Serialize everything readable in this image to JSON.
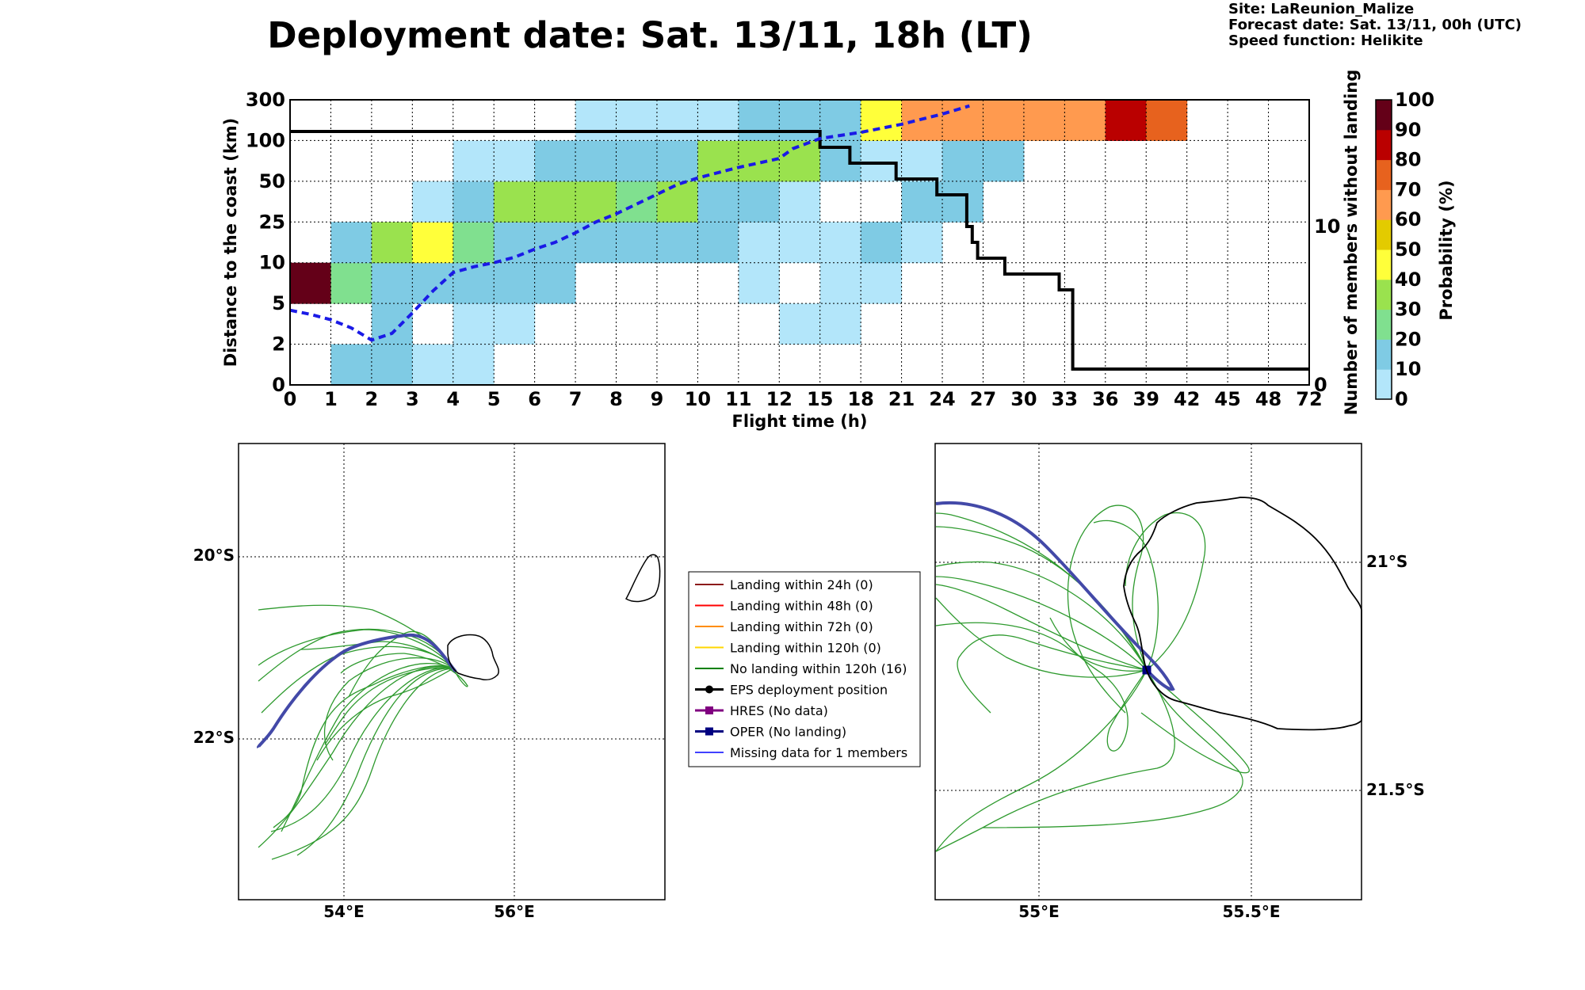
{
  "title": "Deployment date: Sat. 13/11, 18h (LT)",
  "site_info": {
    "site": "Site: LaReunion_Malize",
    "forecast": "Forecast date: Sat. 13/11, 00h (UTC)",
    "speed": "Speed function: Helikite"
  },
  "chart_data": [
    {
      "type": "heatmap",
      "xlabel": "Flight time (h)",
      "ylabel": "Distance to the coast (km)",
      "y2label": "Number of members without landing",
      "x_bins": [
        "0",
        "1",
        "2",
        "3",
        "4",
        "5",
        "6",
        "7",
        "8",
        "9",
        "10",
        "11",
        "12",
        "15",
        "18",
        "21",
        "24",
        "27",
        "30",
        "33",
        "36",
        "39",
        "42",
        "45",
        "48",
        "72"
      ],
      "y_bins": [
        "0",
        "2",
        "5",
        "10",
        "25",
        "50",
        "100",
        "300"
      ],
      "y2_ticks": [
        "0",
        "10"
      ],
      "y2_range": [
        0,
        18
      ],
      "colorbar": {
        "label": "Probability (%)",
        "ticks": [
          "0",
          "10",
          "20",
          "30",
          "40",
          "50",
          "60",
          "70",
          "80",
          "90",
          "100"
        ],
        "colors": [
          "#b3e6fa",
          "#7fcbe4",
          "#80e08f",
          "#9ae24e",
          "#ffff3a",
          "#e3cb00",
          "#ff9a4f",
          "#e7621e",
          "#ba0000",
          "#640018"
        ]
      },
      "cells": [
        {
          "x": 0,
          "y": 2,
          "v": 95
        },
        {
          "x": 1,
          "y": 0,
          "v": 10
        },
        {
          "x": 2,
          "y": 0,
          "v": 10
        },
        {
          "x": 3,
          "y": 0,
          "v": 5
        },
        {
          "x": 4,
          "y": 0,
          "v": 5
        },
        {
          "x": 2,
          "y": 1,
          "v": 10
        },
        {
          "x": 4,
          "y": 1,
          "v": 5
        },
        {
          "x": 5,
          "y": 1,
          "v": 5
        },
        {
          "x": 12,
          "y": 1,
          "v": 5
        },
        {
          "x": 13,
          "y": 1,
          "v": 5
        },
        {
          "x": 1,
          "y": 2,
          "v": 25
        },
        {
          "x": 2,
          "y": 2,
          "v": 15
        },
        {
          "x": 3,
          "y": 2,
          "v": 15
        },
        {
          "x": 4,
          "y": 2,
          "v": 10
        },
        {
          "x": 5,
          "y": 2,
          "v": 10
        },
        {
          "x": 6,
          "y": 2,
          "v": 10
        },
        {
          "x": 11,
          "y": 2,
          "v": 5
        },
        {
          "x": 13,
          "y": 2,
          "v": 5
        },
        {
          "x": 14,
          "y": 2,
          "v": 5
        },
        {
          "x": 1,
          "y": 3,
          "v": 15
        },
        {
          "x": 2,
          "y": 3,
          "v": 35
        },
        {
          "x": 3,
          "y": 3,
          "v": 45
        },
        {
          "x": 4,
          "y": 3,
          "v": 25
        },
        {
          "x": 5,
          "y": 3,
          "v": 15
        },
        {
          "x": 6,
          "y": 3,
          "v": 15
        },
        {
          "x": 7,
          "y": 3,
          "v": 15
        },
        {
          "x": 8,
          "y": 3,
          "v": 15
        },
        {
          "x": 9,
          "y": 3,
          "v": 10
        },
        {
          "x": 10,
          "y": 3,
          "v": 10
        },
        {
          "x": 11,
          "y": 3,
          "v": 5
        },
        {
          "x": 12,
          "y": 3,
          "v": 5
        },
        {
          "x": 13,
          "y": 3,
          "v": 5
        },
        {
          "x": 14,
          "y": 3,
          "v": 10
        },
        {
          "x": 15,
          "y": 3,
          "v": 5
        },
        {
          "x": 3,
          "y": 4,
          "v": 5
        },
        {
          "x": 4,
          "y": 4,
          "v": 15
        },
        {
          "x": 5,
          "y": 4,
          "v": 35
        },
        {
          "x": 6,
          "y": 4,
          "v": 35
        },
        {
          "x": 7,
          "y": 4,
          "v": 35
        },
        {
          "x": 8,
          "y": 4,
          "v": 25
        },
        {
          "x": 9,
          "y": 4,
          "v": 35
        },
        {
          "x": 10,
          "y": 4,
          "v": 10
        },
        {
          "x": 11,
          "y": 4,
          "v": 10
        },
        {
          "x": 12,
          "y": 4,
          "v": 5
        },
        {
          "x": 15,
          "y": 4,
          "v": 10
        },
        {
          "x": 16,
          "y": 4,
          "v": 10
        },
        {
          "x": 4,
          "y": 5,
          "v": 5
        },
        {
          "x": 5,
          "y": 5,
          "v": 5
        },
        {
          "x": 6,
          "y": 5,
          "v": 10
        },
        {
          "x": 7,
          "y": 5,
          "v": 10
        },
        {
          "x": 8,
          "y": 5,
          "v": 15
        },
        {
          "x": 9,
          "y": 5,
          "v": 15
        },
        {
          "x": 10,
          "y": 5,
          "v": 35
        },
        {
          "x": 11,
          "y": 5,
          "v": 35
        },
        {
          "x": 12,
          "y": 5,
          "v": 35
        },
        {
          "x": 13,
          "y": 5,
          "v": 10
        },
        {
          "x": 14,
          "y": 5,
          "v": 5
        },
        {
          "x": 15,
          "y": 5,
          "v": 5
        },
        {
          "x": 16,
          "y": 5,
          "v": 10
        },
        {
          "x": 17,
          "y": 5,
          "v": 15
        },
        {
          "x": 7,
          "y": 6,
          "v": 5
        },
        {
          "x": 8,
          "y": 6,
          "v": 5
        },
        {
          "x": 9,
          "y": 6,
          "v": 5
        },
        {
          "x": 10,
          "y": 6,
          "v": 5
        },
        {
          "x": 11,
          "y": 6,
          "v": 10
        },
        {
          "x": 12,
          "y": 6,
          "v": 15
        },
        {
          "x": 13,
          "y": 6,
          "v": 15
        },
        {
          "x": 14,
          "y": 6,
          "v": 45
        },
        {
          "x": 15,
          "y": 6,
          "v": 65
        },
        {
          "x": 16,
          "y": 6,
          "v": 65
        },
        {
          "x": 17,
          "y": 6,
          "v": 65
        },
        {
          "x": 18,
          "y": 6,
          "v": 65
        },
        {
          "x": 19,
          "y": 6,
          "v": 65
        },
        {
          "x": 20,
          "y": 6,
          "v": 85
        },
        {
          "x": 21,
          "y": 6,
          "v": 75
        }
      ],
      "series": [
        {
          "name": "",
          "axis": "y2",
          "style": "solid-step",
          "x": [
            0,
            15,
            15,
            17.2,
            17.2,
            20.6,
            20.6,
            23.6,
            23.6,
            25.8,
            25.8,
            26.2,
            26.2,
            26.6,
            26.6,
            28.6,
            28.6,
            32.6,
            32.6,
            33.6,
            33.6,
            72
          ],
          "y": [
            16,
            16,
            15,
            15,
            14,
            14,
            13,
            13,
            12,
            12,
            10,
            10,
            9,
            9,
            8,
            8,
            7,
            7,
            6,
            6,
            1,
            1
          ]
        },
        {
          "name": "",
          "axis": "y",
          "style": "dashed",
          "x": [
            0,
            0.5,
            1,
            1.5,
            2,
            2.5,
            3,
            3.5,
            4,
            4.5,
            5,
            5.5,
            6,
            6.5,
            7,
            7.5,
            8,
            8.5,
            9,
            9.5,
            10,
            11,
            12,
            13,
            15,
            18,
            21,
            24,
            26
          ],
          "y": [
            4.5,
            4.2,
            3.8,
            3.2,
            2.3,
            2.8,
            4.3,
            6.5,
            8.8,
            9.5,
            10,
            12,
            15,
            17.5,
            21,
            25,
            30,
            36,
            42,
            48,
            54,
            67,
            78,
            90,
            110,
            140,
            180,
            230,
            270
          ]
        }
      ]
    }
  ],
  "maps": {
    "left": {
      "lat_ticks": [
        "20°S",
        "22°S"
      ],
      "lon_ticks": [
        "54°E",
        "56°E"
      ]
    },
    "right": {
      "lat_ticks": [
        "21°S",
        "21.5°S"
      ],
      "lon_ticks": [
        "55°E",
        "55.5°E"
      ]
    }
  },
  "legend": [
    {
      "label": "Landing within 24h (0)",
      "color": "#8b1a1a",
      "marker": "none"
    },
    {
      "label": "Landing within 48h (0)",
      "color": "#ff0000",
      "marker": "none"
    },
    {
      "label": "Landing within 72h (0)",
      "color": "#ff8c00",
      "marker": "none"
    },
    {
      "label": "Landing within 120h (0)",
      "color": "#ffd700",
      "marker": "none"
    },
    {
      "label": "No landing within 120h (16)",
      "color": "#008000",
      "marker": "none"
    },
    {
      "label": "EPS deployment position",
      "color": "#000000",
      "marker": "circle"
    },
    {
      "label": "HRES (No data)",
      "color": "#800080",
      "marker": "square"
    },
    {
      "label": "OPER (No landing)",
      "color": "#000080",
      "marker": "square"
    },
    {
      "label": "Missing data for 1 members",
      "color": "#4040ff",
      "marker": "none"
    }
  ],
  "colors": {
    "member_track": "#2e9a2e",
    "oper_track": "#4349a8",
    "coast": "#000000"
  }
}
